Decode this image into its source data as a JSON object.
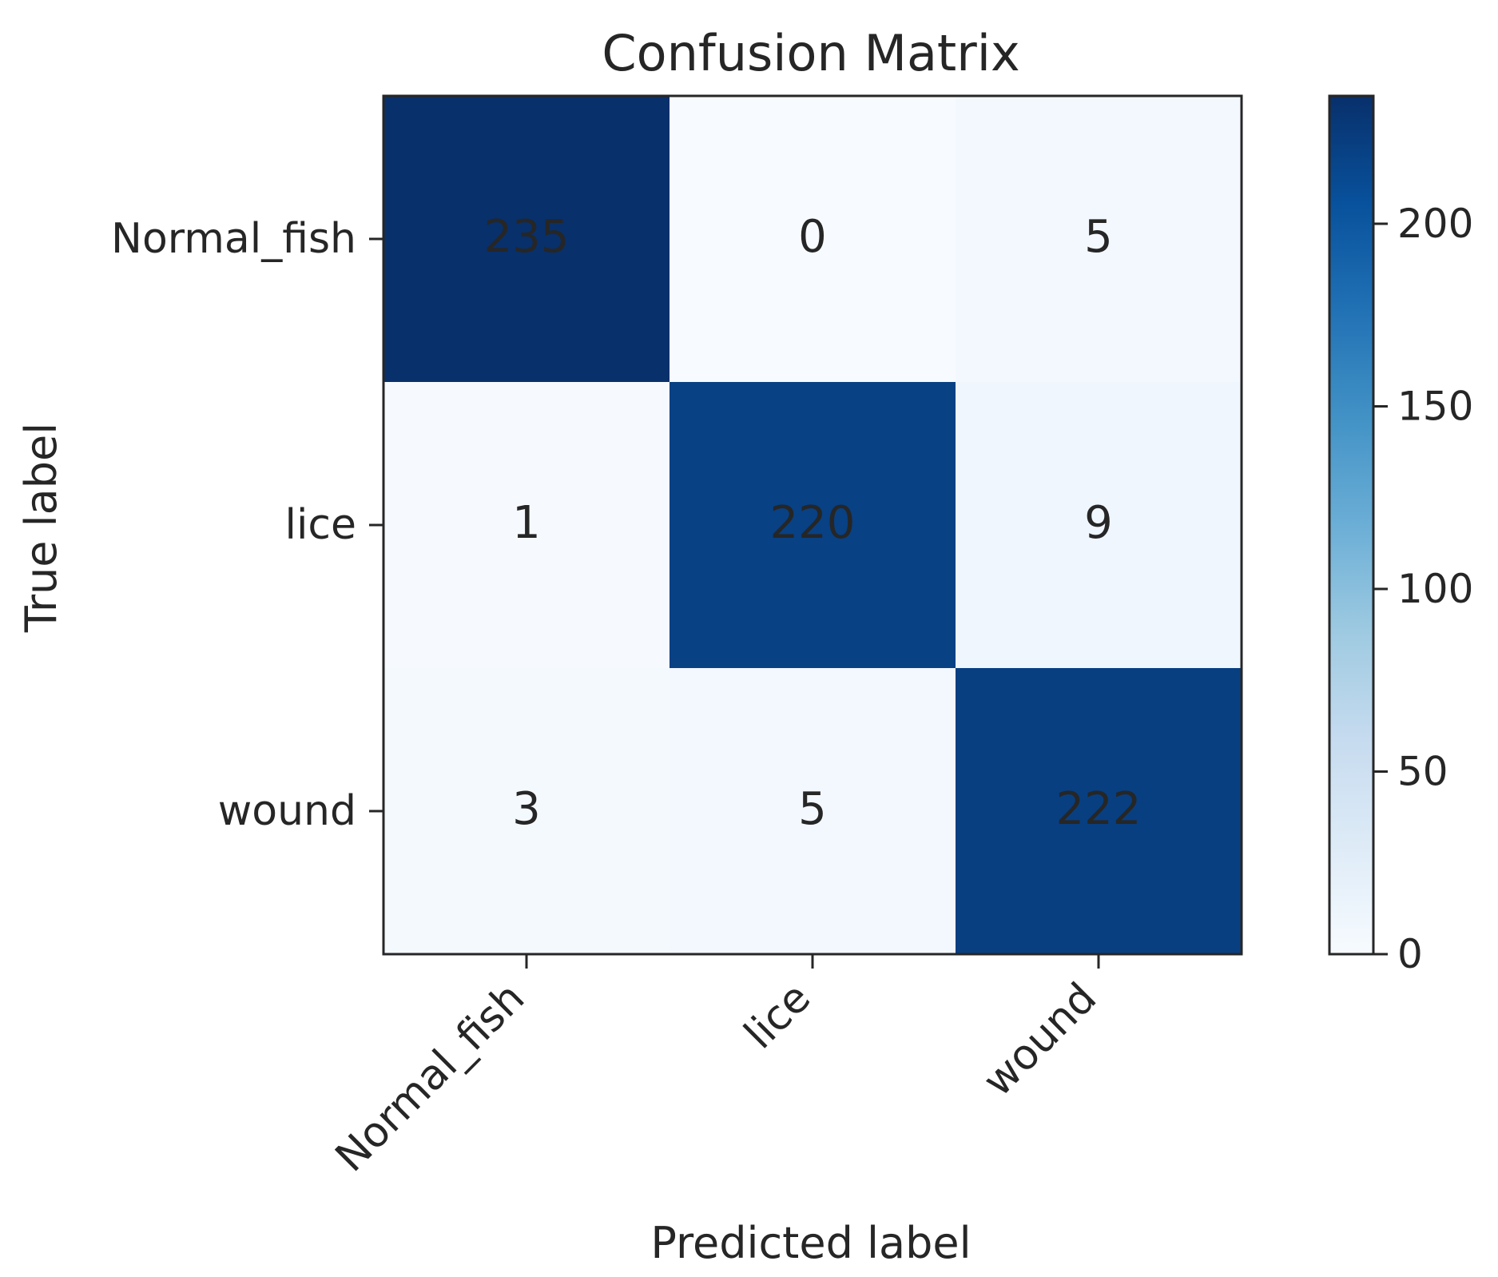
{
  "chart_data": {
    "type": "heatmap",
    "title": "Confusion Matrix",
    "xlabel": "Predicted label",
    "ylabel": "True label",
    "row_labels": [
      "Normal_fish",
      "lice",
      "wound"
    ],
    "col_labels": [
      "Normal_fish",
      "lice",
      "wound"
    ],
    "matrix": [
      [
        235,
        0,
        5
      ],
      [
        1,
        220,
        9
      ],
      [
        3,
        5,
        222
      ]
    ],
    "color_scale": {
      "colormap": "Blues",
      "min": 0,
      "max": 235,
      "ticks": [
        0,
        50,
        100,
        150,
        200
      ]
    },
    "annotation_colors": {
      "dark": "#262626",
      "light": "#f5f8fd"
    },
    "colormap_stops": [
      "#f7fbff",
      "#deebf7",
      "#c6dbef",
      "#9ecae1",
      "#6baed6",
      "#4292c6",
      "#2171b5",
      "#08519c",
      "#08306b"
    ]
  }
}
